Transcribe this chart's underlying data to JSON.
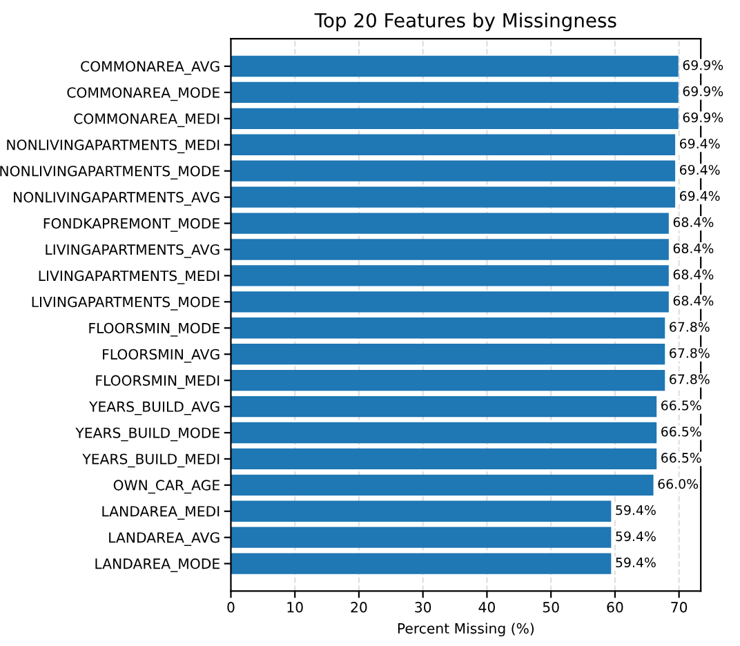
{
  "chart_data": {
    "type": "bar",
    "orientation": "horizontal",
    "title": "Top 20 Features by Missingness",
    "xlabel": "Percent Missing (%)",
    "categories": [
      "COMMONAREA_AVG",
      "COMMONAREA_MODE",
      "COMMONAREA_MEDI",
      "NONLIVINGAPARTMENTS_MEDI",
      "NONLIVINGAPARTMENTS_MODE",
      "NONLIVINGAPARTMENTS_AVG",
      "FONDKAPREMONT_MODE",
      "LIVINGAPARTMENTS_AVG",
      "LIVINGAPARTMENTS_MEDI",
      "LIVINGAPARTMENTS_MODE",
      "FLOORSMIN_MODE",
      "FLOORSMIN_AVG",
      "FLOORSMIN_MEDI",
      "YEARS_BUILD_AVG",
      "YEARS_BUILD_MODE",
      "YEARS_BUILD_MEDI",
      "OWN_CAR_AGE",
      "LANDAREA_MEDI",
      "LANDAREA_AVG",
      "LANDAREA_MODE"
    ],
    "values": [
      69.9,
      69.9,
      69.9,
      69.4,
      69.4,
      69.4,
      68.4,
      68.4,
      68.4,
      68.4,
      67.8,
      67.8,
      67.8,
      66.5,
      66.5,
      66.5,
      66.0,
      59.4,
      59.4,
      59.4
    ],
    "value_labels": [
      "69.9%",
      "69.9%",
      "69.9%",
      "69.4%",
      "69.4%",
      "69.4%",
      "68.4%",
      "68.4%",
      "68.4%",
      "68.4%",
      "67.8%",
      "67.8%",
      "67.8%",
      "66.5%",
      "66.5%",
      "66.5%",
      "66.0%",
      "59.4%",
      "59.4%",
      "59.4%"
    ],
    "color": "#1f77b4",
    "xlim": [
      0,
      73.4
    ],
    "xticks": [
      0,
      10,
      20,
      30,
      40,
      50,
      60,
      70
    ],
    "grid": "x",
    "line_style": "dashed"
  }
}
